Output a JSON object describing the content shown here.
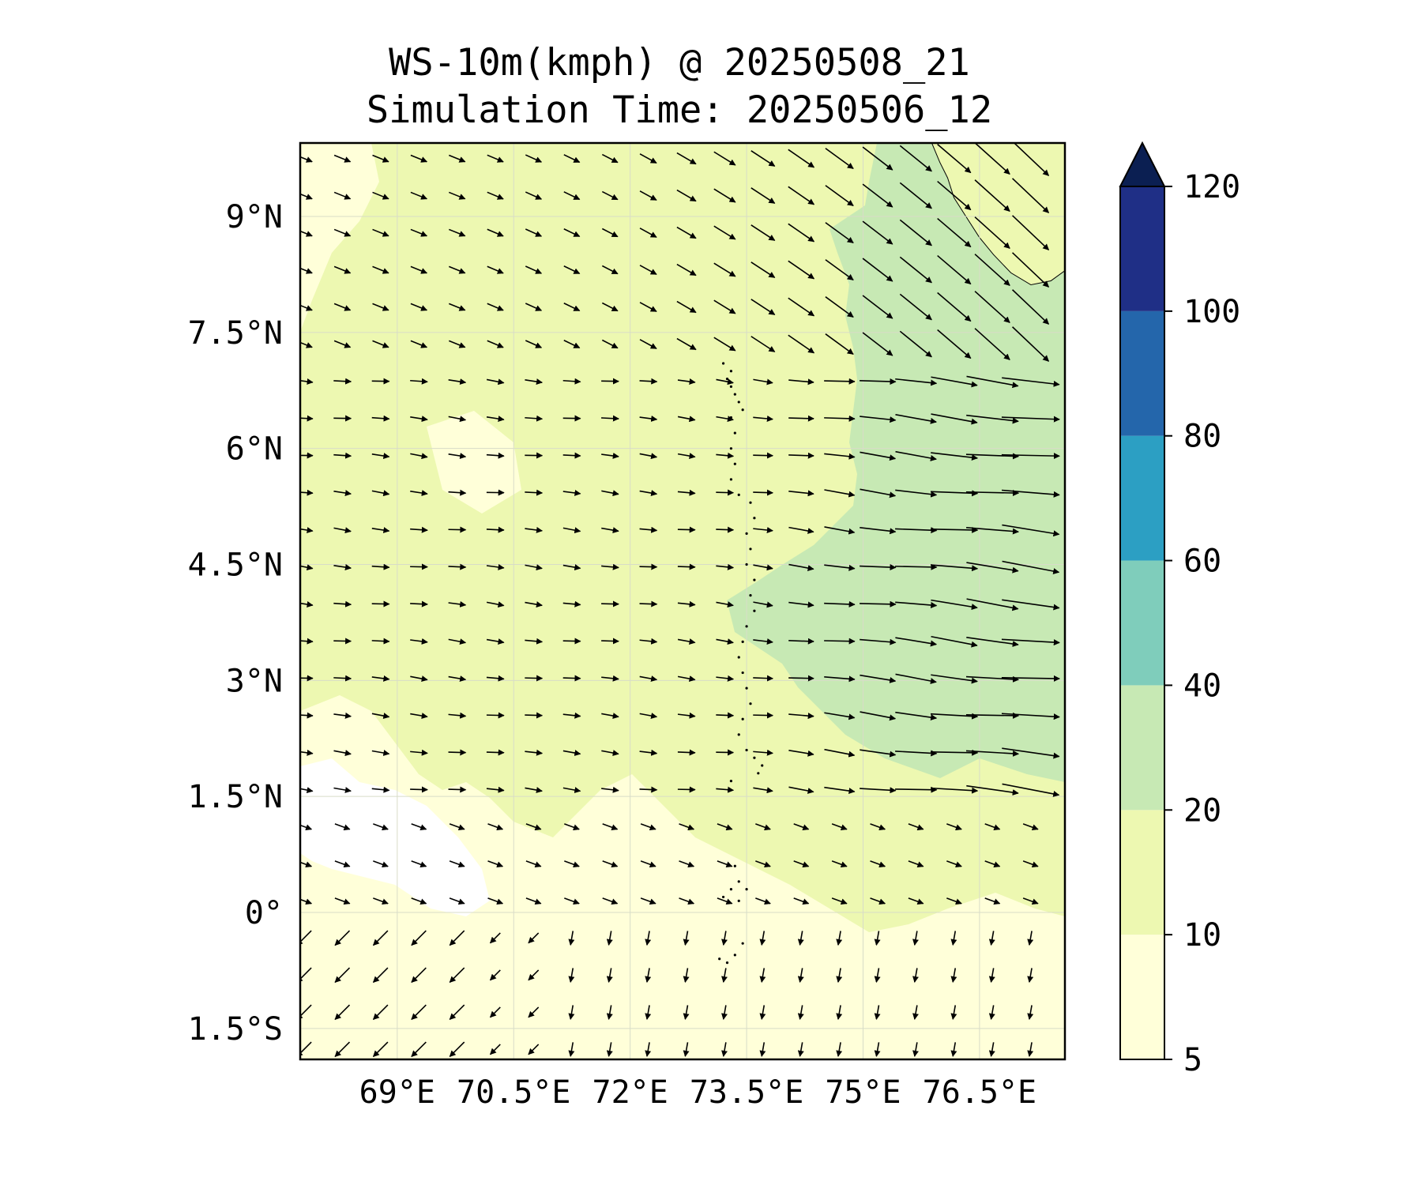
{
  "title": "WS-10m(kmph) @ 20250508_21",
  "subtitle": "Simulation Time: 20250506_12",
  "map": {
    "lon_range": [
      67.75,
      77.6
    ],
    "lat_range": [
      -1.9,
      9.95
    ],
    "x_ticks": [
      {
        "value": 69,
        "label": "69°E"
      },
      {
        "value": 70.5,
        "label": "70.5°E"
      },
      {
        "value": 72,
        "label": "72°E"
      },
      {
        "value": 73.5,
        "label": "73.5°E"
      },
      {
        "value": 75,
        "label": "75°E"
      },
      {
        "value": 76.5,
        "label": "76.5°E"
      }
    ],
    "y_ticks": [
      {
        "value": 9,
        "label": "9°N"
      },
      {
        "value": 7.5,
        "label": "7.5°N"
      },
      {
        "value": 6,
        "label": "6°N"
      },
      {
        "value": 4.5,
        "label": "4.5°N"
      },
      {
        "value": 3,
        "label": "3°N"
      },
      {
        "value": 1.5,
        "label": "1.5°N"
      },
      {
        "value": 0,
        "label": "0°"
      },
      {
        "value": -1.5,
        "label": "1.5°S"
      }
    ],
    "gridlines": true,
    "fill_regions": {
      "class_0_10": "#ffffd9",
      "class_5": "#ffffff",
      "class_10_20": "#edf8b1",
      "class_20_40": "#c7e9b4"
    }
  },
  "colorbar": {
    "levels": [
      {
        "label": "5",
        "value": 5
      },
      {
        "label": "10",
        "value": 10
      },
      {
        "label": "20",
        "value": 20
      },
      {
        "label": "40",
        "value": 40
      },
      {
        "label": "60",
        "value": 60
      },
      {
        "label": "80",
        "value": 80
      },
      {
        "label": "100",
        "value": 100
      },
      {
        "label": "120",
        "value": 120
      }
    ],
    "colors": [
      "#ffffd9",
      "#edf8b1",
      "#c7e9b4",
      "#7fcdbb",
      "#2c9fc3",
      "#2466ab",
      "#1f2f86"
    ],
    "extend_color": "#0b1f52",
    "extend": "max"
  }
}
